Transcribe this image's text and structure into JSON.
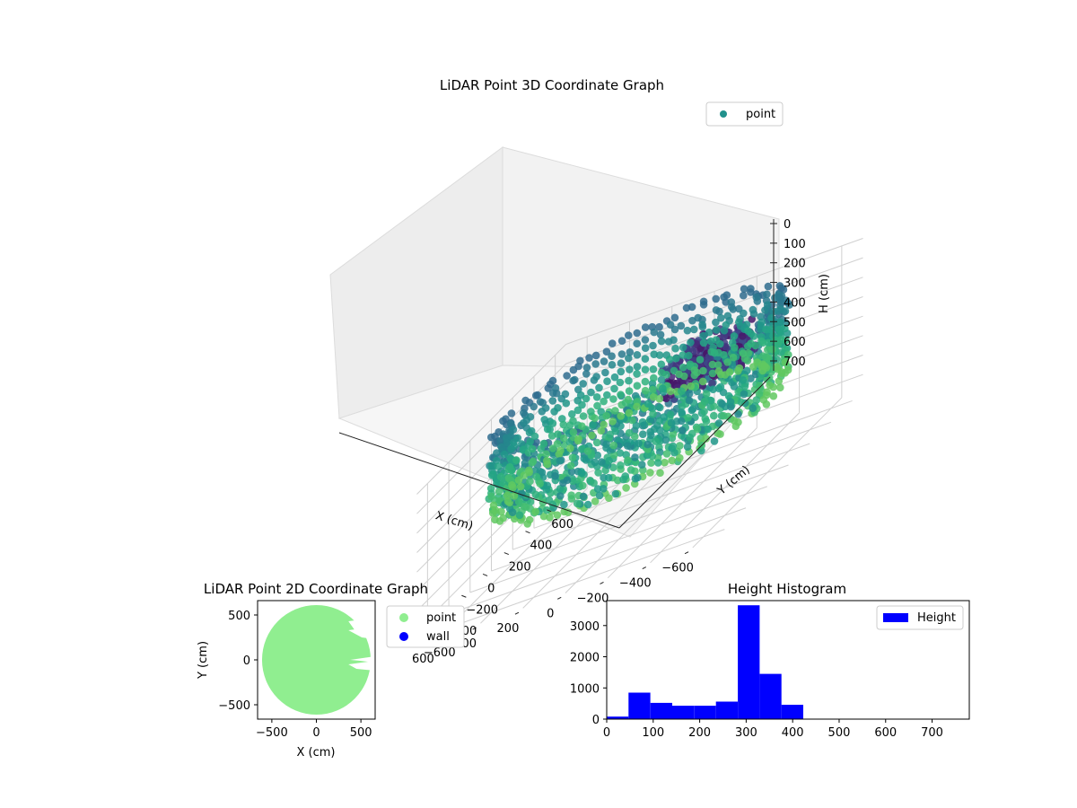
{
  "chart_data": [
    {
      "type": "scatter",
      "title": "LiDAR Point 3D Coordinate Graph",
      "xlabel": "X (cm)",
      "ylabel": "Y (cm)",
      "zlabel": "H (cm)",
      "xlim": [
        -700,
        700
      ],
      "ylim": [
        -700,
        700
      ],
      "zlim": [
        0,
        780
      ],
      "z_inverted": true,
      "x_ticks": [
        "−600",
        "−400",
        "−200",
        "0",
        "200",
        "400",
        "600"
      ],
      "y_ticks": [
        "−600",
        "−400",
        "−200",
        "0",
        "200",
        "400",
        "600"
      ],
      "z_ticks": [
        "0",
        "100",
        "200",
        "300",
        "400",
        "500",
        "600",
        "700"
      ],
      "legend": [
        {
          "label": "point",
          "color": "#21918c"
        }
      ],
      "legend_position": "upper-right",
      "colormap": "viridis",
      "grid": true,
      "point_groups": [
        {
          "kind": "wall-ring",
          "radius": [
            540,
            640
          ],
          "h": [
            0,
            430
          ]
        },
        {
          "kind": "dense-block",
          "x": [
            -380,
            -60
          ],
          "y": [
            60,
            380
          ],
          "h": [
            80,
            260
          ]
        },
        {
          "kind": "floor-scatter",
          "radius": [
            0,
            600
          ],
          "h": [
            280,
            430
          ]
        }
      ]
    },
    {
      "type": "scatter",
      "title": "LiDAR Point 2D Coordinate Graph",
      "xlabel": "X (cm)",
      "ylabel": "Y (cm)",
      "xlim": [
        -660,
        660
      ],
      "ylim": [
        -660,
        660
      ],
      "x_ticks": [
        -500,
        0,
        500
      ],
      "y_ticks": [
        -500,
        0,
        500
      ],
      "tick_labels_x": [
        "−500",
        "0",
        "500"
      ],
      "tick_labels_y": [
        "−500",
        "0",
        "500"
      ],
      "series": [
        {
          "name": "point",
          "color": "#90ee90",
          "shape": "disk",
          "radius": 610
        },
        {
          "name": "wall",
          "color": "#0000ff",
          "shape": "none"
        }
      ],
      "legend_position": "outside-right"
    },
    {
      "type": "bar",
      "title": "Height Histogram",
      "xlim": [
        0,
        780
      ],
      "ylim": [
        0,
        3800
      ],
      "x_ticks": [
        0,
        100,
        200,
        300,
        400,
        500,
        600,
        700
      ],
      "y_ticks": [
        0,
        1000,
        2000,
        3000
      ],
      "series": [
        {
          "name": "Height",
          "color": "#0000ff",
          "bins": [
            {
              "x0": 0,
              "x1": 47,
              "count": 80
            },
            {
              "x0": 47,
              "x1": 94,
              "count": 850
            },
            {
              "x0": 94,
              "x1": 141,
              "count": 520
            },
            {
              "x0": 141,
              "x1": 188,
              "count": 430
            },
            {
              "x0": 188,
              "x1": 235,
              "count": 430
            },
            {
              "x0": 235,
              "x1": 282,
              "count": 560
            },
            {
              "x0": 282,
              "x1": 329,
              "count": 3650
            },
            {
              "x0": 329,
              "x1": 376,
              "count": 1450
            },
            {
              "x0": 376,
              "x1": 423,
              "count": 460
            }
          ]
        }
      ],
      "legend_position": "upper-right"
    }
  ]
}
